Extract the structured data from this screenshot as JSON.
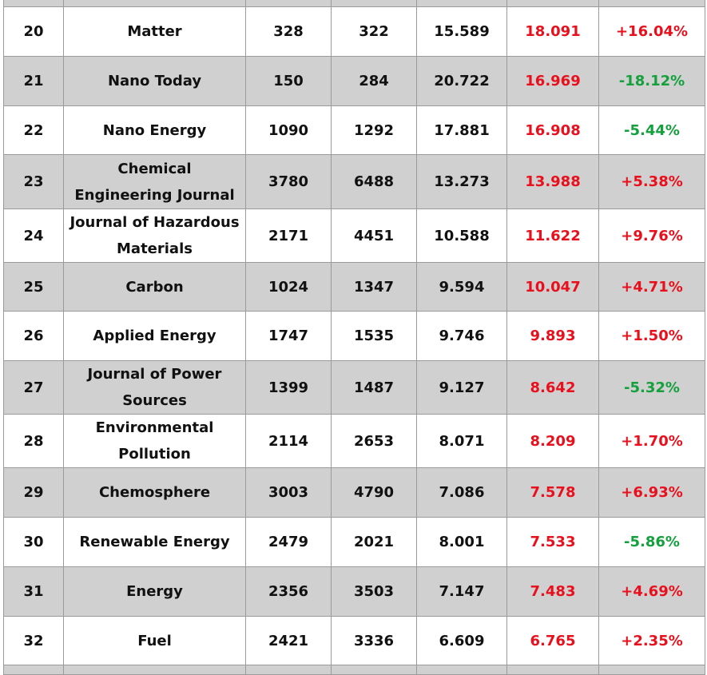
{
  "rows": [
    {
      "rank": "20",
      "name": "Matter",
      "c1": "328",
      "c2": "322",
      "v1": "15.589",
      "v2": "18.091",
      "change": "+16.04%",
      "change_dir": "up"
    },
    {
      "rank": "21",
      "name": "Nano Today",
      "c1": "150",
      "c2": "284",
      "v1": "20.722",
      "v2": "16.969",
      "change": "-18.12%",
      "change_dir": "down"
    },
    {
      "rank": "22",
      "name": "Nano Energy",
      "c1": "1090",
      "c2": "1292",
      "v1": "17.881",
      "v2": "16.908",
      "change": "-5.44%",
      "change_dir": "down"
    },
    {
      "rank": "23",
      "name": "Chemical Engineering Journal",
      "c1": "3780",
      "c2": "6488",
      "v1": "13.273",
      "v2": "13.988",
      "change": "+5.38%",
      "change_dir": "up"
    },
    {
      "rank": "24",
      "name": "Journal of Hazardous Materials",
      "c1": "2171",
      "c2": "4451",
      "v1": "10.588",
      "v2": "11.622",
      "change": "+9.76%",
      "change_dir": "up"
    },
    {
      "rank": "25",
      "name": "Carbon",
      "c1": "1024",
      "c2": "1347",
      "v1": "9.594",
      "v2": "10.047",
      "change": "+4.71%",
      "change_dir": "up"
    },
    {
      "rank": "26",
      "name": "Applied Energy",
      "c1": "1747",
      "c2": "1535",
      "v1": "9.746",
      "v2": "9.893",
      "change": "+1.50%",
      "change_dir": "up"
    },
    {
      "rank": "27",
      "name": "Journal of Power Sources",
      "c1": "1399",
      "c2": "1487",
      "v1": "9.127",
      "v2": "8.642",
      "change": "-5.32%",
      "change_dir": "down"
    },
    {
      "rank": "28",
      "name": "Environmental Pollution",
      "c1": "2114",
      "c2": "2653",
      "v1": "8.071",
      "v2": "8.209",
      "change": "+1.70%",
      "change_dir": "up"
    },
    {
      "rank": "29",
      "name": "Chemosphere",
      "c1": "3003",
      "c2": "4790",
      "v1": "7.086",
      "v2": "7.578",
      "change": "+6.93%",
      "change_dir": "up"
    },
    {
      "rank": "30",
      "name": "Renewable Energy",
      "c1": "2479",
      "c2": "2021",
      "v1": "8.001",
      "v2": "7.533",
      "change": "-5.86%",
      "change_dir": "down"
    },
    {
      "rank": "31",
      "name": "Energy",
      "c1": "2356",
      "c2": "3503",
      "v1": "7.147",
      "v2": "7.483",
      "change": "+4.69%",
      "change_dir": "up"
    },
    {
      "rank": "32",
      "name": "Fuel",
      "c1": "2421",
      "c2": "3336",
      "v1": "6.609",
      "v2": "6.765",
      "change": "+2.35%",
      "change_dir": "up"
    }
  ],
  "colors": {
    "row_alt_bg": "#d0d0d0",
    "value_highlight": "#e8101c",
    "change_up": "#e8101c",
    "change_down": "#14a03c"
  }
}
